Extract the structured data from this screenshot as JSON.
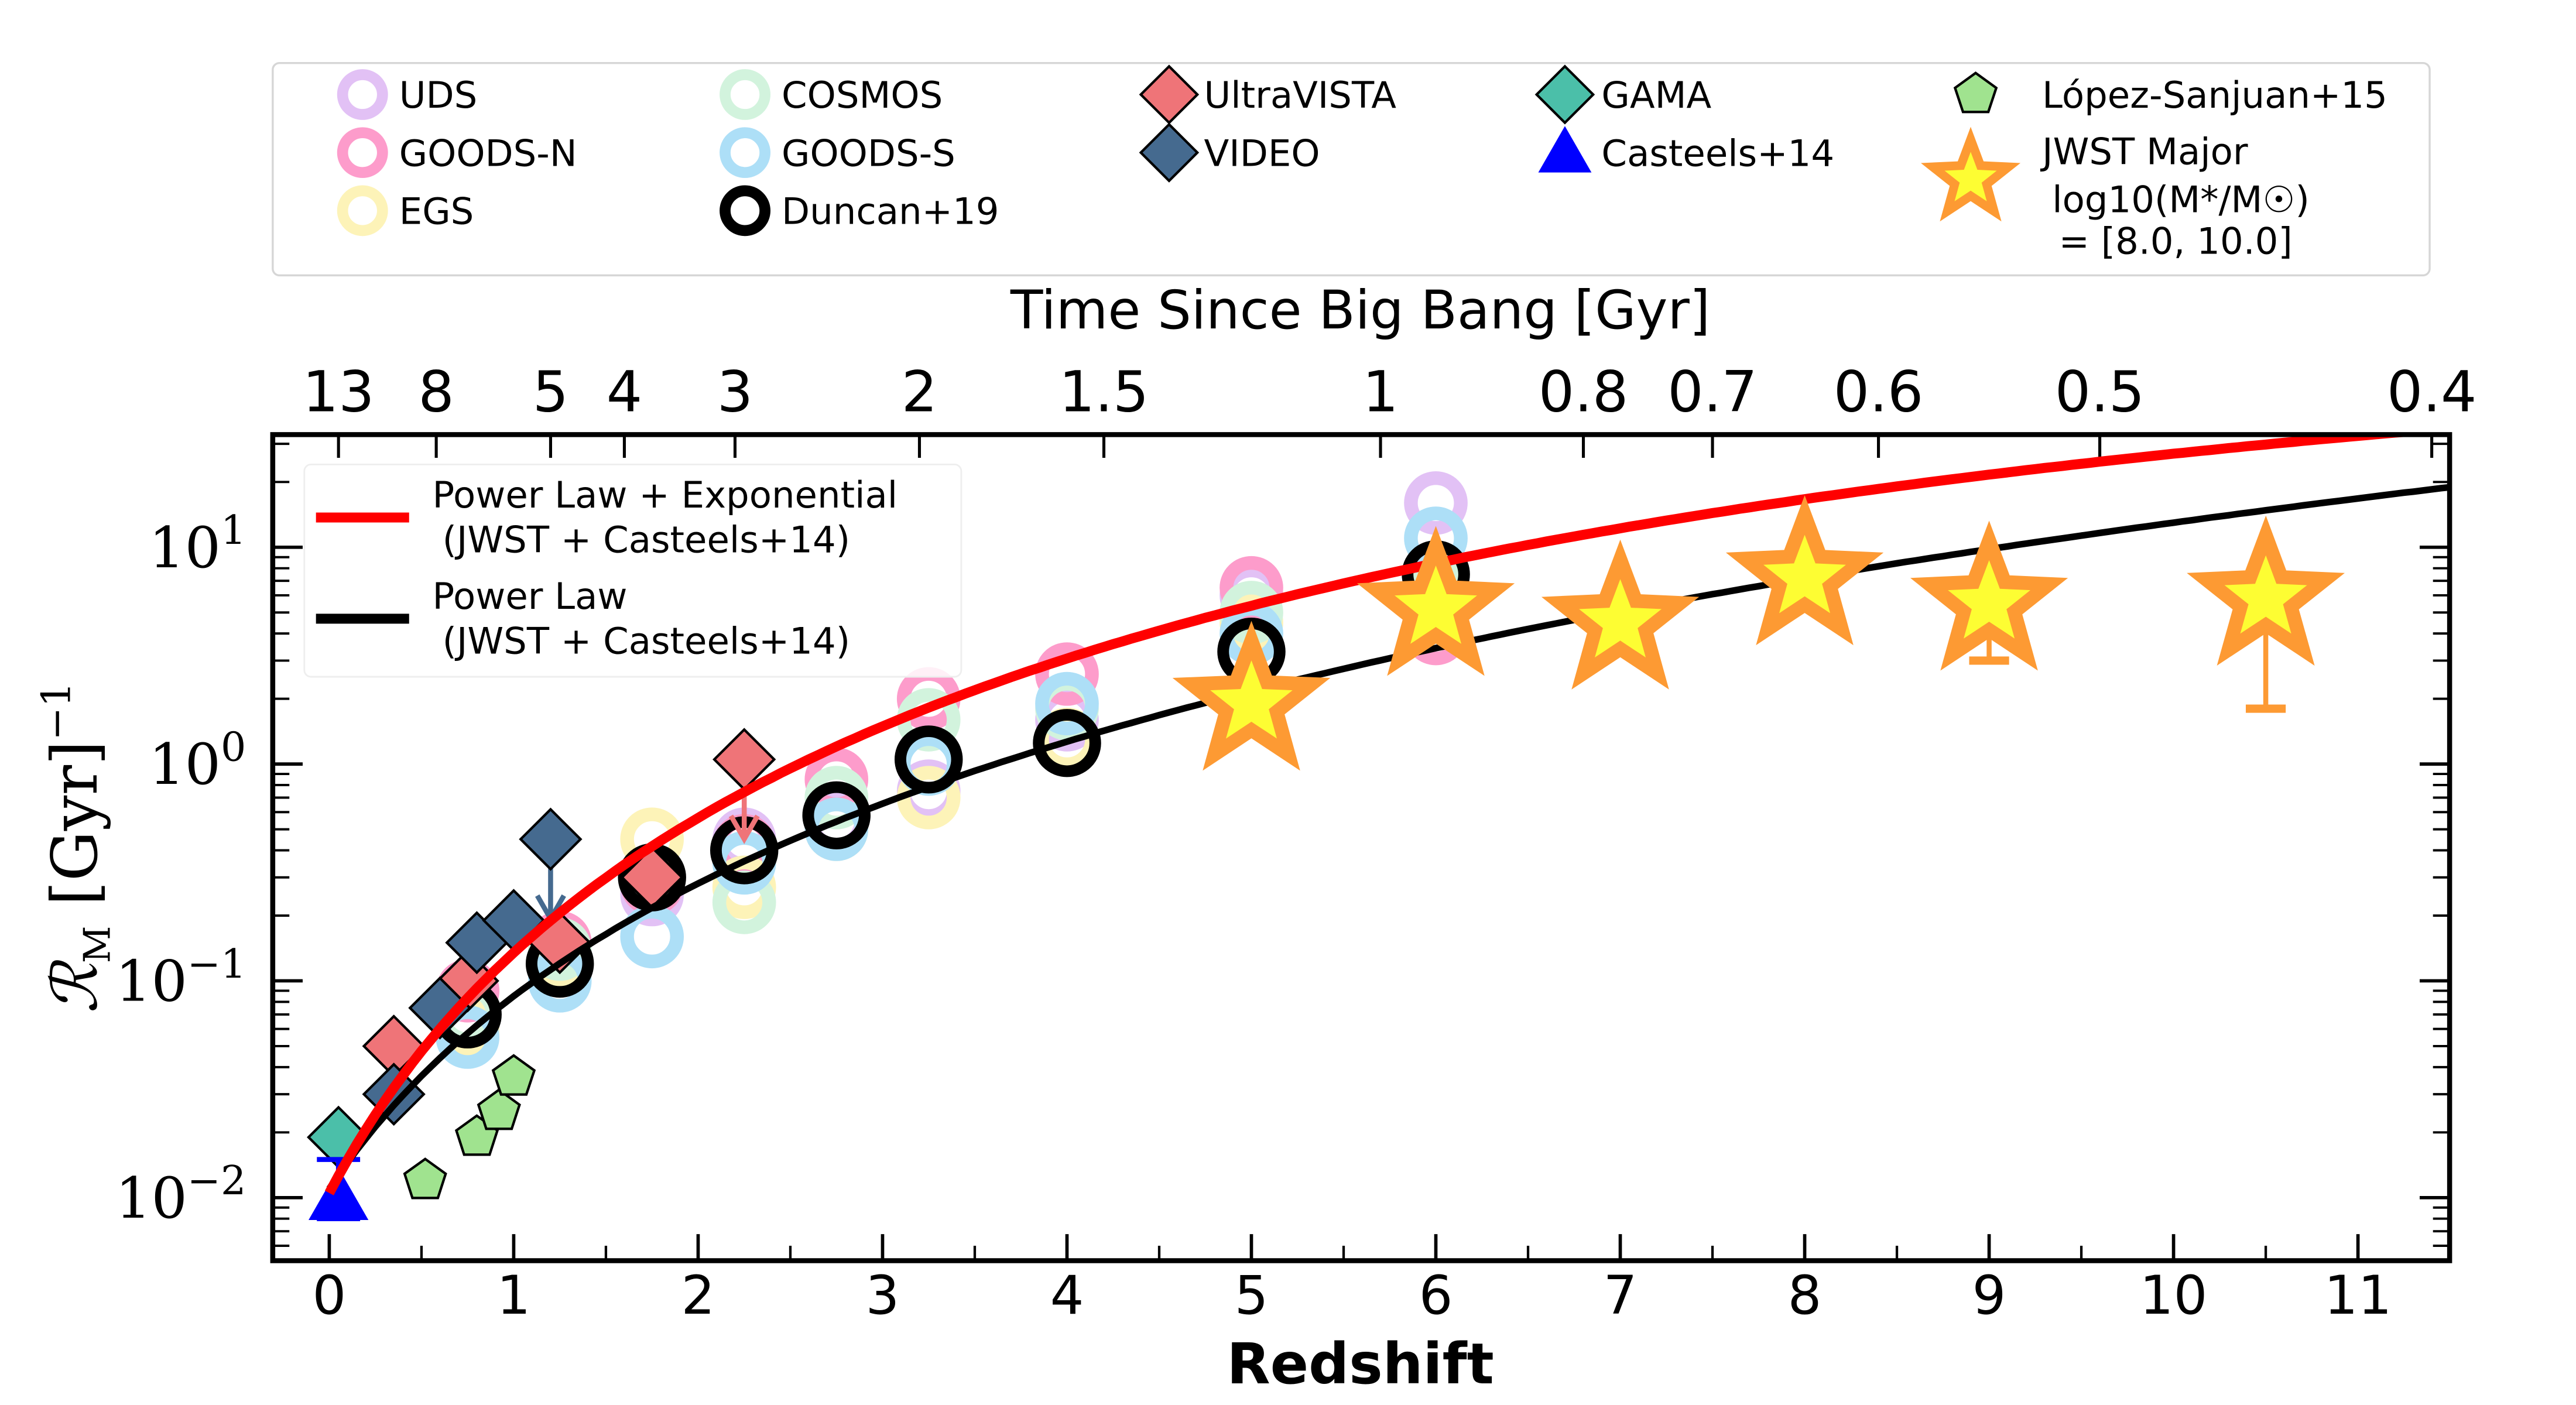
{
  "chart_data": {
    "type": "scatter",
    "title": "",
    "xlabel": "Redshift",
    "ylabel": "R_M [Gyr]^-1",
    "top_xlabel": "Time Since Big Bang [Gyr]",
    "xlim": [
      -0.3,
      11.5
    ],
    "ylim_log10": [
      -2.3,
      1.5
    ],
    "yscale": "log",
    "x_ticks": [
      0,
      1,
      2,
      3,
      4,
      5,
      6,
      7,
      8,
      9,
      10,
      11
    ],
    "x_tick_labels": [
      "0",
      "1",
      "2",
      "3",
      "4",
      "5",
      "6",
      "7",
      "8",
      "9",
      "10",
      "11"
    ],
    "y_ticks_log10": [
      -2,
      -1,
      0,
      1
    ],
    "y_tick_labels": [
      {
        "base": "10",
        "exp": "−2"
      },
      {
        "base": "10",
        "exp": "−1"
      },
      {
        "base": "10",
        "exp": "0"
      },
      {
        "base": "10",
        "exp": "1"
      }
    ],
    "top_ticks": [
      {
        "z": 0.05,
        "label": "13"
      },
      {
        "z": 0.58,
        "label": "8"
      },
      {
        "z": 1.2,
        "label": "5"
      },
      {
        "z": 1.6,
        "label": "4"
      },
      {
        "z": 2.2,
        "label": "3"
      },
      {
        "z": 3.2,
        "label": "2"
      },
      {
        "z": 4.2,
        "label": "1.5"
      },
      {
        "z": 5.7,
        "label": "1"
      },
      {
        "z": 6.8,
        "label": "0.8"
      },
      {
        "z": 7.5,
        "label": "0.7"
      },
      {
        "z": 8.4,
        "label": "0.6"
      },
      {
        "z": 9.6,
        "label": "0.5"
      },
      {
        "z": 11.4,
        "label": "0.4"
      }
    ],
    "legend_top": [
      {
        "label": "UDS",
        "marker": "ring",
        "color": "#e2c1f5"
      },
      {
        "label": "GOODS-N",
        "marker": "ring",
        "color": "#fd9ccb"
      },
      {
        "label": "EGS",
        "marker": "ring",
        "color": "#fdf3b8"
      },
      {
        "label": "COSMOS",
        "marker": "ring",
        "color": "#d2f3dd"
      },
      {
        "label": "GOODS-S",
        "marker": "ring",
        "color": "#addff7"
      },
      {
        "label": "Duncan+19",
        "marker": "ring",
        "color": "#000000"
      },
      {
        "label": "UltraVISTA",
        "marker": "diamond",
        "color": "#ef7478"
      },
      {
        "label": "VIDEO",
        "marker": "diamond",
        "color": "#456a8f"
      },
      {
        "label": "GAMA",
        "marker": "diamond",
        "color": "#4bbfa9"
      },
      {
        "label": "Casteels+14",
        "marker": "triangle",
        "color": "#0000ff"
      },
      {
        "label": "López-Sanjuan+15",
        "marker": "pentagon",
        "color": "#a0e38f"
      },
      {
        "label": "JWST Major",
        "label2": "log10(M*/M☉)",
        "label3": "= [8.0, 10.0]",
        "marker": "star",
        "color": "#fdfd33",
        "edge": "#fd9a33"
      }
    ],
    "legend_fits": [
      {
        "label": "Power Law + Exponential",
        "label2": "(JWST + Casteels+14)",
        "color": "#ff0000"
      },
      {
        "label": "Power Law",
        "label2": "(JWST + Casteels+14)",
        "color": "#000000"
      }
    ],
    "series": [
      {
        "name": "UDS",
        "marker": "ring",
        "color": "#e2c1f5",
        "points": [
          [
            1.25,
            0.12
          ],
          [
            1.75,
            0.25
          ],
          [
            2.25,
            0.45
          ],
          [
            2.75,
            0.55
          ],
          [
            3.25,
            0.75
          ],
          [
            4,
            1.6
          ],
          [
            5,
            6.0
          ],
          [
            6,
            16
          ]
        ]
      },
      {
        "name": "GOODS-N",
        "marker": "ring",
        "color": "#fd9ccb",
        "points": [
          [
            0.75,
            0.09
          ],
          [
            1.25,
            0.15
          ],
          [
            1.75,
            0.28
          ],
          [
            2.25,
            0.42
          ],
          [
            2.75,
            0.85
          ],
          [
            3.25,
            2.0
          ],
          [
            4,
            2.6
          ],
          [
            5,
            6.5
          ],
          [
            6,
            4.0
          ]
        ]
      },
      {
        "name": "EGS",
        "marker": "ring",
        "color": "#fdf3b8",
        "points": [
          [
            0.75,
            0.06
          ],
          [
            1.25,
            0.13
          ],
          [
            1.75,
            0.45
          ],
          [
            2.25,
            0.27
          ],
          [
            2.75,
            0.5
          ],
          [
            3.25,
            0.7
          ],
          [
            4,
            1.3
          ],
          [
            5,
            4.5
          ],
          [
            6,
            6.0
          ]
        ]
      },
      {
        "name": "COSMOS",
        "marker": "ring",
        "color": "#d2f3dd",
        "points": [
          [
            0.75,
            0.07
          ],
          [
            1.25,
            0.14
          ],
          [
            1.75,
            0.3
          ],
          [
            2.25,
            0.23
          ],
          [
            2.75,
            0.7
          ],
          [
            3.25,
            1.6
          ],
          [
            4,
            1.8
          ],
          [
            5,
            5.0
          ],
          [
            6,
            7.0
          ]
        ]
      },
      {
        "name": "GOODS-S",
        "marker": "ring",
        "color": "#addff7",
        "points": [
          [
            0.75,
            0.055
          ],
          [
            1.25,
            0.1
          ],
          [
            1.75,
            0.16
          ],
          [
            2.25,
            0.35
          ],
          [
            2.75,
            0.5
          ],
          [
            3.25,
            1.0
          ],
          [
            4,
            1.9
          ],
          [
            5,
            4.0
          ],
          [
            6,
            11
          ]
        ]
      },
      {
        "name": "Duncan+19",
        "marker": "ring",
        "color": "#000000",
        "points": [
          [
            0.75,
            0.07
          ],
          [
            1.25,
            0.12
          ],
          [
            1.75,
            0.3
          ],
          [
            2.25,
            0.4
          ],
          [
            2.75,
            0.58
          ],
          [
            3.25,
            1.05
          ],
          [
            4,
            1.25
          ],
          [
            5,
            3.3
          ],
          [
            6,
            7.5
          ]
        ]
      },
      {
        "name": "UltraVISTA",
        "marker": "diamond",
        "color": "#ef7478",
        "points": [
          [
            0.35,
            0.05
          ],
          [
            0.75,
            0.1
          ],
          [
            1.25,
            0.15
          ],
          [
            1.75,
            0.3
          ],
          [
            2.25,
            1.05
          ]
        ],
        "upper_limit_index": [
          4
        ]
      },
      {
        "name": "VIDEO",
        "marker": "diamond",
        "color": "#456a8f",
        "points": [
          [
            0.35,
            0.03
          ],
          [
            0.6,
            0.075
          ],
          [
            0.8,
            0.15
          ],
          [
            1.0,
            0.19
          ],
          [
            1.2,
            0.45
          ]
        ],
        "upper_limit_index": [
          4
        ]
      },
      {
        "name": "GAMA",
        "marker": "diamond",
        "color": "#4bbfa9",
        "points": [
          [
            0.05,
            0.019
          ]
        ]
      },
      {
        "name": "Casteels+14",
        "marker": "triangle",
        "color": "#0000ff",
        "points": [
          [
            0.05,
            0.01
          ]
        ],
        "yerr": [
          [
            0.008,
            0.015
          ]
        ]
      },
      {
        "name": "López-Sanjuan+15",
        "marker": "pentagon",
        "color": "#a0e38f",
        "points": [
          [
            0.52,
            0.012
          ],
          [
            0.8,
            0.019
          ],
          [
            0.92,
            0.025
          ],
          [
            1.0,
            0.036
          ]
        ]
      },
      {
        "name": "JWST Major",
        "marker": "star",
        "color": "#fdfd33",
        "edge": "#fd9a33",
        "points": [
          [
            5,
            1.9
          ],
          [
            6,
            5.2
          ],
          [
            7,
            4.5
          ],
          [
            8,
            7.2
          ],
          [
            9,
            5.5
          ],
          [
            10.5,
            5.8
          ]
        ],
        "yerr": [
          null,
          null,
          null,
          null,
          [
            3.0,
            null
          ],
          [
            1.8,
            null
          ]
        ]
      }
    ],
    "fits": [
      {
        "name": "Power Law + Exponential",
        "color": "#ff0000",
        "form": "A*(1+z)^m*exp(-tau*z)",
        "A": 0.0105,
        "m": 3.9,
        "tau": 0.15
      },
      {
        "name": "Power Law",
        "color": "#000000",
        "form": "A*(1+z)^m",
        "A": 0.011,
        "m": 2.95
      }
    ]
  }
}
